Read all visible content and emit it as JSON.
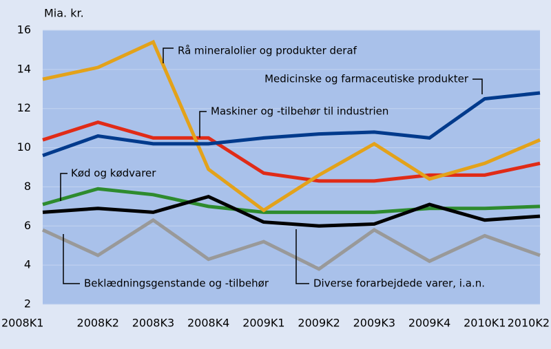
{
  "chart_data": {
    "type": "line",
    "y_label": "Mia. kr.",
    "categories": [
      "2008K1",
      "2008K2",
      "2008K3",
      "2008K4",
      "2009K1",
      "2009K2",
      "2009K3",
      "2009K4",
      "2010K1",
      "2010K2"
    ],
    "series": [
      {
        "name": "Rå mineralolier og produkter deraf",
        "color": "#e3a21a",
        "values": [
          13.5,
          14.1,
          15.4,
          8.9,
          6.8,
          8.6,
          10.2,
          8.4,
          9.2,
          10.4
        ]
      },
      {
        "name": "Medicinske og farmaceutiske produkter",
        "color": "#003a8c",
        "values": [
          9.6,
          10.6,
          10.2,
          10.2,
          10.5,
          10.7,
          10.8,
          10.5,
          12.5,
          12.8
        ]
      },
      {
        "name": "Maskiner og -tilbehør til industrien",
        "color": "#e02b17",
        "values": [
          10.4,
          11.3,
          10.5,
          10.5,
          8.7,
          8.3,
          8.3,
          8.6,
          8.6,
          9.2
        ]
      },
      {
        "name": "Kød og kødvarer",
        "color": "#2e8b2e",
        "values": [
          7.1,
          7.9,
          7.6,
          7.0,
          6.7,
          6.7,
          6.7,
          6.9,
          6.9,
          7.0
        ]
      },
      {
        "name": "Diverse forarbejdede varer, i.a.n.",
        "color": "#000000",
        "values": [
          6.7,
          6.9,
          6.7,
          7.5,
          6.2,
          6.0,
          6.1,
          7.1,
          6.3,
          6.5
        ]
      },
      {
        "name": "Beklædningsgenstande og -tilbehør",
        "color": "#999999",
        "values": [
          5.8,
          4.5,
          6.3,
          4.3,
          5.2,
          3.8,
          5.8,
          4.2,
          5.5,
          4.5
        ]
      }
    ],
    "ylim": [
      2,
      16
    ],
    "yticks": [
      2,
      4,
      6,
      8,
      10,
      12,
      14,
      16
    ],
    "grid": true
  }
}
